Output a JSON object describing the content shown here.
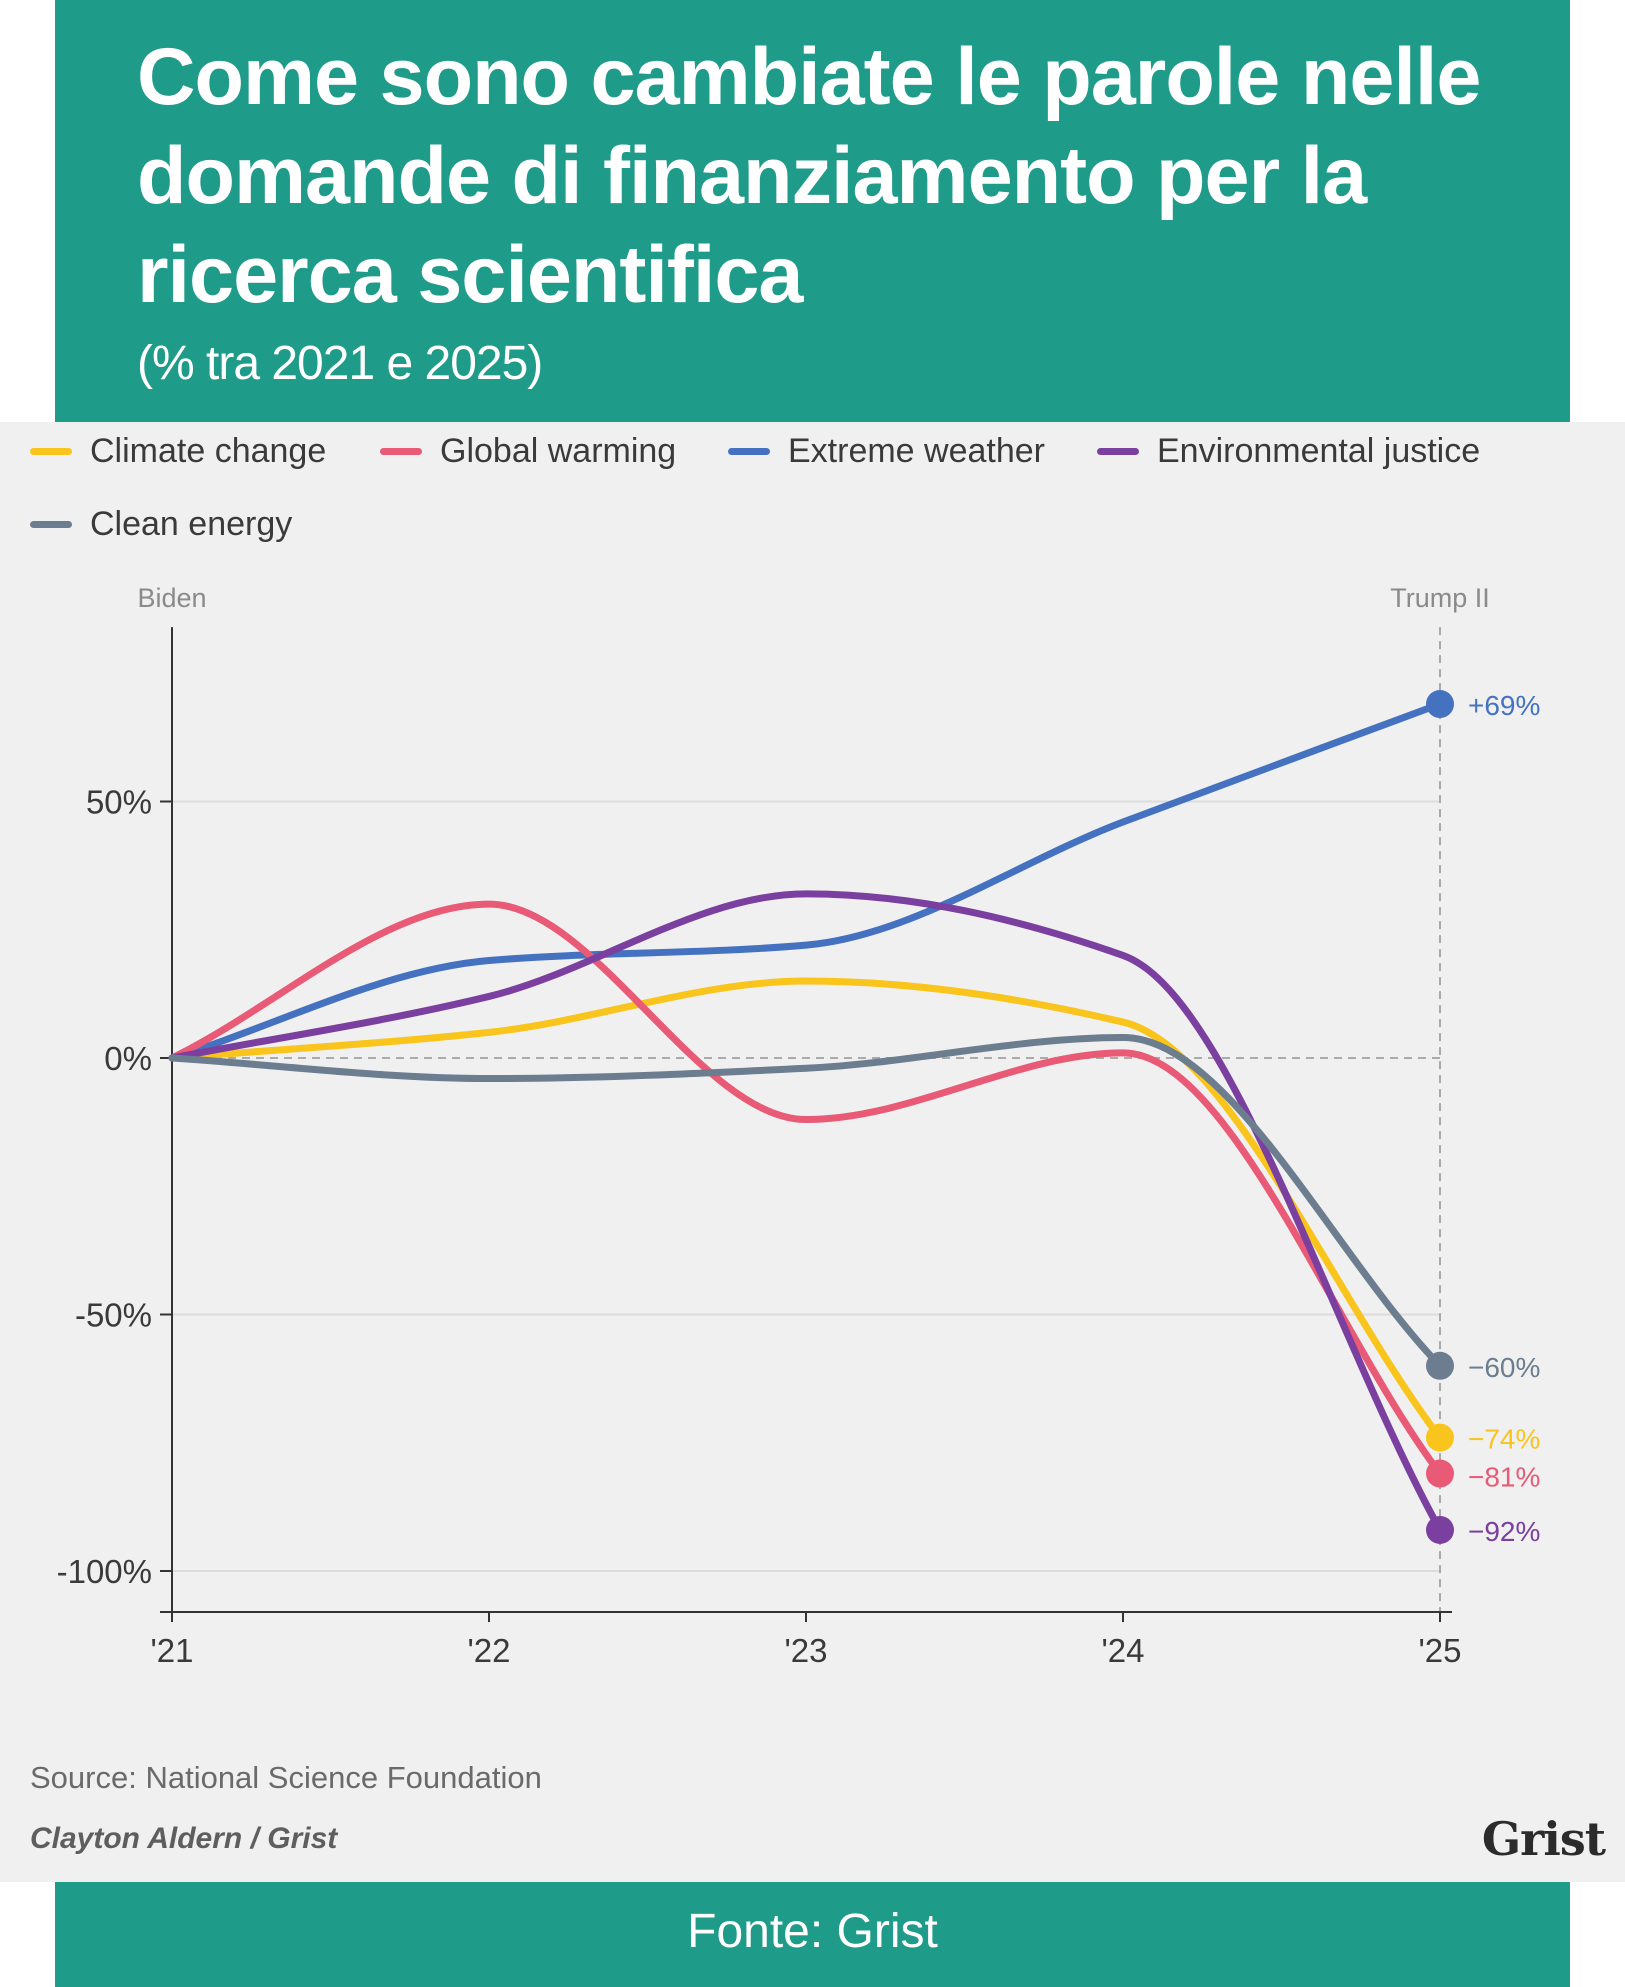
{
  "header": {
    "title": "Come sono cambiate le parole nelle domande di finanziamento per la ricerca scientifica",
    "subtitle": "(% tra 2021 e 2025)"
  },
  "chart_data": {
    "type": "line",
    "x": [
      "'21",
      "'22",
      "'23",
      "'24",
      "'25"
    ],
    "ylim": [
      -108,
      84
    ],
    "yticks": [
      50,
      0,
      -50,
      -100
    ],
    "ytick_labels": [
      "50%",
      "0%",
      "-50%",
      "-100%"
    ],
    "period_labels": {
      "start": "Biden",
      "end": "Trump II"
    },
    "series": [
      {
        "name": "Climate change",
        "color": "#f9c41b",
        "values": [
          0,
          5,
          15,
          7,
          -74
        ],
        "end_label": "−74%"
      },
      {
        "name": "Global warming",
        "color": "#e85a75",
        "values": [
          0,
          30,
          -12,
          1,
          -81
        ],
        "end_label": "−81%"
      },
      {
        "name": "Extreme weather",
        "color": "#4472c0",
        "values": [
          0,
          19,
          22,
          46,
          69
        ],
        "end_label": "+69%"
      },
      {
        "name": "Environmental justice",
        "color": "#7b3fa0",
        "values": [
          0,
          12,
          32,
          20,
          -92
        ],
        "end_label": "−92%"
      },
      {
        "name": "Clean energy",
        "color": "#6b7d8e",
        "values": [
          0,
          -4,
          -2,
          4,
          -60
        ],
        "end_label": "−60%"
      }
    ]
  },
  "footer_notes": {
    "source": "Source: National Science Foundation",
    "credit": "Clayton Aldern / Grist",
    "logo": "Grist"
  },
  "footer": {
    "text": "Fonte: Grist"
  }
}
